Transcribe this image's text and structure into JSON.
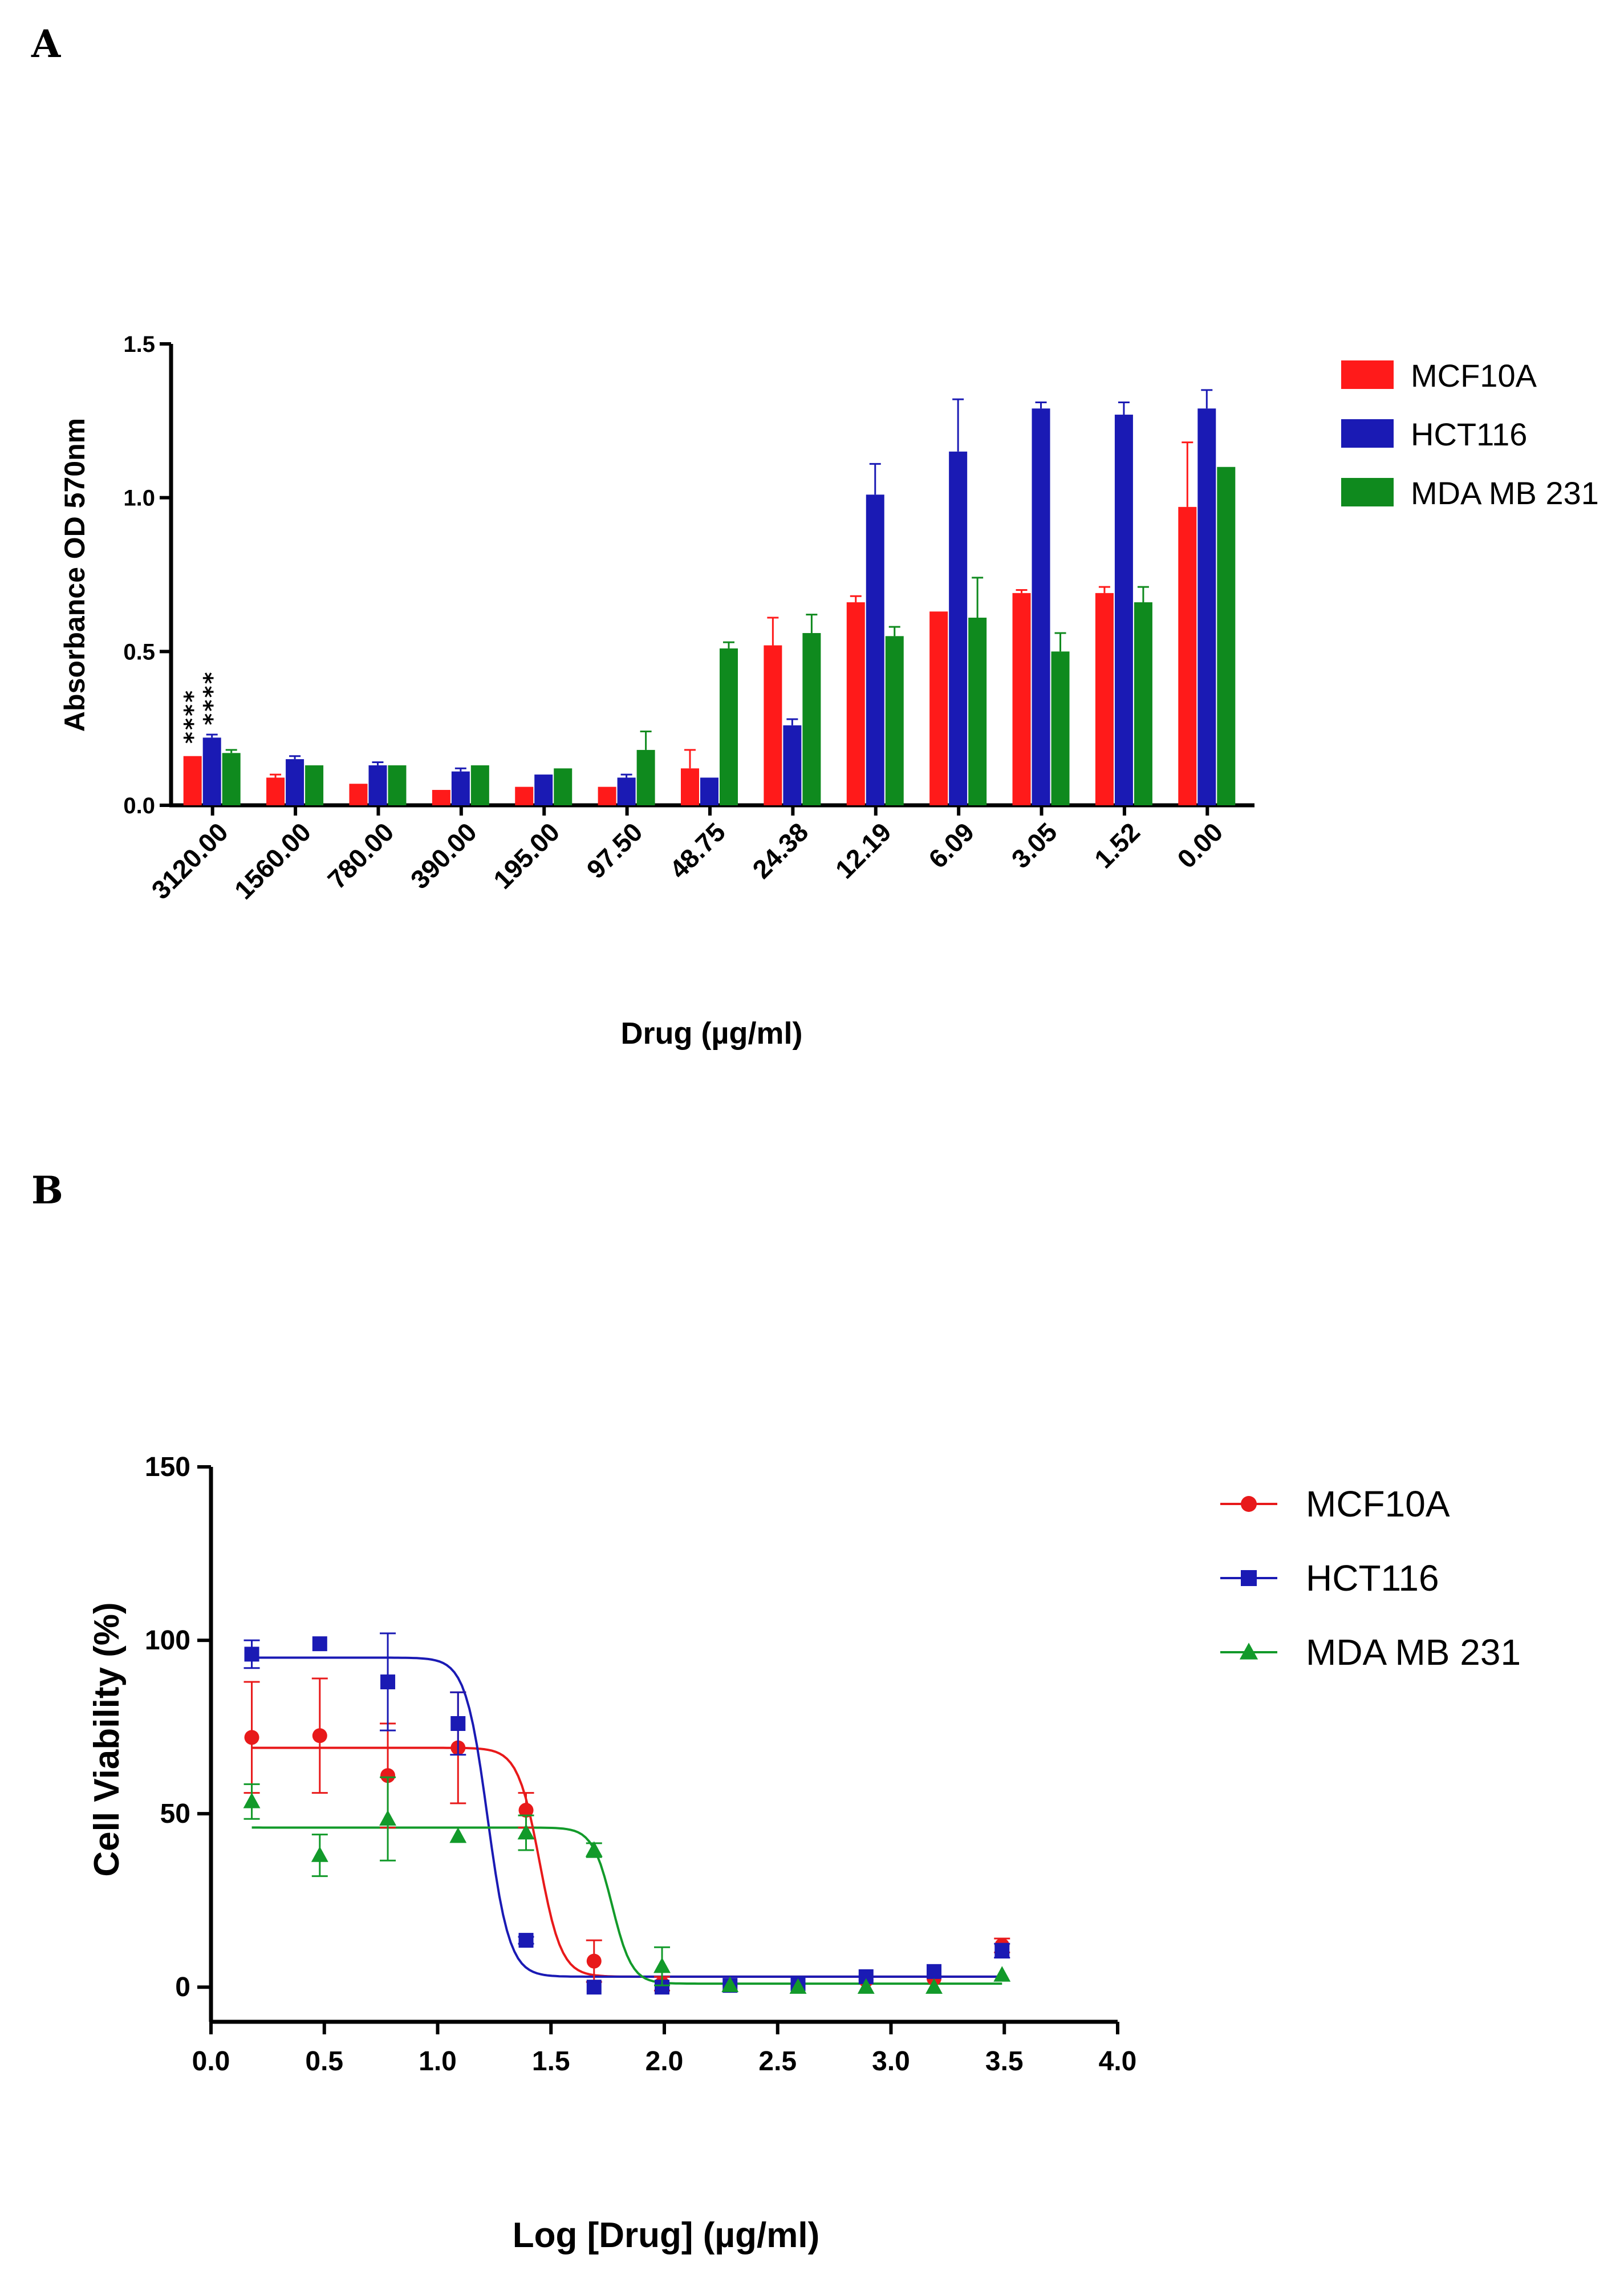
{
  "panels": {
    "a_label": "A",
    "b_label": "B"
  },
  "chart_data": [
    {
      "type": "bar",
      "panel": "A",
      "title": "",
      "xlabel": "Drug (µg/ml)",
      "ylabel": "Absorbance OD 570nm",
      "ylim": [
        0,
        1.5
      ],
      "yticks": [
        "0.0",
        "0.5",
        "1.0",
        "1.5"
      ],
      "yticks_values": [
        0,
        0.5,
        1.0,
        1.5
      ],
      "categories": [
        "3120.00",
        "1560.00",
        "780.00",
        "390.00",
        "195.00",
        "97.50",
        "48.75",
        "24.38",
        "12.19",
        "6.09",
        "3.05",
        "1.52",
        "0.00"
      ],
      "series": [
        {
          "name": "MCF10A",
          "color": "#ff1a1a",
          "values": [
            0.16,
            0.09,
            0.07,
            0.05,
            0.06,
            0.06,
            0.12,
            0.52,
            0.66,
            0.63,
            0.69,
            0.69,
            0.97
          ],
          "errors": [
            0.0,
            0.01,
            0.0,
            0.0,
            0.0,
            0.0,
            0.06,
            0.09,
            0.02,
            0.0,
            0.01,
            0.02,
            0.21
          ]
        },
        {
          "name": "HCT116",
          "color": "#1a1ab4",
          "values": [
            0.22,
            0.15,
            0.13,
            0.11,
            0.1,
            0.09,
            0.09,
            0.26,
            1.01,
            1.15,
            1.29,
            1.27,
            1.29
          ],
          "errors": [
            0.01,
            0.01,
            0.01,
            0.01,
            0.0,
            0.01,
            0.0,
            0.02,
            0.1,
            0.17,
            0.02,
            0.04,
            0.06
          ]
        },
        {
          "name": "MDA MB 231",
          "color": "#0f8a1e",
          "values": [
            0.17,
            0.13,
            0.13,
            0.13,
            0.12,
            0.18,
            0.51,
            0.56,
            0.55,
            0.61,
            0.5,
            0.66,
            1.1
          ],
          "errors": [
            0.01,
            0.0,
            0.0,
            0.0,
            0.0,
            0.06,
            0.02,
            0.06,
            0.03,
            0.13,
            0.06,
            0.05,
            0.0
          ]
        }
      ],
      "annotations": [
        "****",
        "****"
      ],
      "legend": "right"
    },
    {
      "type": "scatter",
      "panel": "B",
      "title": "",
      "xlabel": "Log [Drug] (µg/ml)",
      "ylabel": "Cell Viability (%)",
      "xlim": [
        0,
        4
      ],
      "ylim": [
        -10,
        150
      ],
      "xticks": [
        "0.0",
        "0.5",
        "1.0",
        "1.5",
        "2.0",
        "2.5",
        "3.0",
        "3.5",
        "4.0"
      ],
      "xticks_values": [
        0,
        0.5,
        1.0,
        1.5,
        2.0,
        2.5,
        3.0,
        3.5,
        4.0
      ],
      "yticks": [
        "0",
        "50",
        "100",
        "150"
      ],
      "yticks_values": [
        0,
        50,
        100,
        150
      ],
      "x": [
        0.18,
        0.48,
        0.78,
        1.09,
        1.39,
        1.69,
        1.99,
        2.29,
        2.59,
        2.89,
        3.19,
        3.49
      ],
      "series": [
        {
          "name": "MCF10A",
          "color": "#e8191a",
          "marker": "circle",
          "values": [
            72,
            72.5,
            61,
            69,
            51,
            7.5,
            1,
            0.5,
            0.5,
            2,
            2.5,
            12
          ],
          "errors": [
            16,
            16.5,
            15,
            16,
            5,
            6,
            2,
            0,
            0,
            0,
            0,
            2
          ],
          "fit": {
            "top": 69,
            "bottom": 3,
            "log_ic50": 1.45,
            "hill": 9
          }
        },
        {
          "name": "HCT116",
          "color": "#1a1ab4",
          "marker": "square",
          "values": [
            96,
            99,
            88,
            76,
            13.5,
            0,
            0,
            0.5,
            1,
            3,
            4.5,
            10.5
          ],
          "errors": [
            4,
            0,
            14,
            9,
            1,
            0,
            0,
            0,
            0,
            0,
            0,
            2
          ],
          "fit": {
            "top": 95,
            "bottom": 3,
            "log_ic50": 1.22,
            "hill": 9
          }
        },
        {
          "name": "MDA MB 231",
          "color": "#129a2a",
          "marker": "triangle",
          "values": [
            53.5,
            38,
            48.5,
            43.5,
            44.5,
            39.5,
            6,
            0.5,
            0,
            0,
            0,
            3.5
          ],
          "errors": [
            5,
            6,
            12,
            0,
            5,
            2,
            5.5,
            0,
            0,
            0,
            0,
            0
          ],
          "fit": {
            "top": 46,
            "bottom": 1,
            "log_ic50": 1.77,
            "hill": 10
          }
        }
      ],
      "legend": "right"
    }
  ]
}
